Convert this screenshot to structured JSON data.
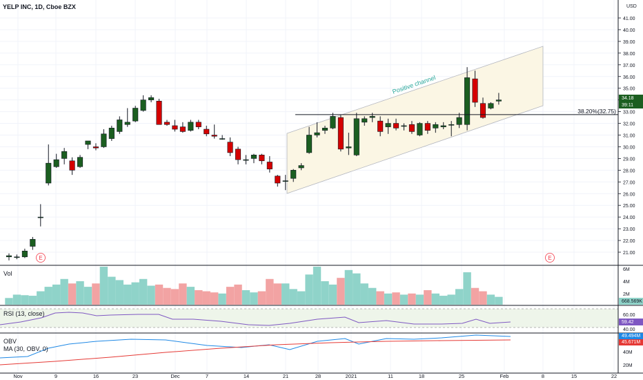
{
  "header": {
    "symbol_title": "YELP INC, 1D, Cboe BZX",
    "currency": "USD"
  },
  "panes": {
    "volume_label": "Vol",
    "rsi_label": "RSI (13, close)",
    "obv_label": "OBV",
    "obv_ma_label": "MA (30, OBV, 0)"
  },
  "annotations": {
    "channel_text": "Positive channel",
    "fib_level_text": "38.20%(32.75)",
    "earnings_marker": "E"
  },
  "badges": {
    "last_price": "34.18",
    "countdown": "39:11",
    "volume_last": "668.569K",
    "rsi_last": "59.42",
    "obv_last": "49.494M",
    "obv_ma_last": "45.671M"
  },
  "colors": {
    "up": "#26a69a",
    "down": "#ef5350",
    "up_body": "#1b5e20",
    "down_body": "#d50000",
    "vol_up": "#8fd3c9",
    "vol_down": "#f2a3a3",
    "channel_fill": "#fbf6e4",
    "rsi": "#7e57c2",
    "obv": "#1e88e5",
    "obv_ma": "#e53935",
    "earnings": "#f23645"
  },
  "chart_data": {
    "type": "candlestick",
    "title": "YELP INC, 1D, Cboe BZX",
    "y_axis": {
      "ticks": [
        "41.00",
        "40.00",
        "39.00",
        "38.00",
        "37.00",
        "36.00",
        "35.00",
        "34.00",
        "33.00",
        "32.00",
        "31.00",
        "30.00",
        "29.00",
        "28.00",
        "27.00",
        "26.00",
        "25.00",
        "24.00",
        "23.00",
        "22.00",
        "21.00"
      ],
      "range": [
        20.1,
        42.0
      ]
    },
    "x_axis": {
      "ticks": [
        "Nov",
        "9",
        "16",
        "23",
        "Dec",
        "7",
        "14",
        "21",
        "28",
        "2021",
        "11",
        "18",
        "25",
        "Feb",
        "8",
        "15",
        "22"
      ]
    },
    "candles": [
      {
        "o": 20.6,
        "h": 20.9,
        "l": 20.3,
        "c": 20.7
      },
      {
        "o": 20.6,
        "h": 20.8,
        "l": 20.4,
        "c": 20.6
      },
      {
        "o": 20.6,
        "h": 21.3,
        "l": 20.5,
        "c": 21.1
      },
      {
        "o": 21.5,
        "h": 22.3,
        "l": 21.2,
        "c": 22.1
      },
      {
        "o": 24.0,
        "h": 25.1,
        "l": 23.2,
        "c": 24.0
      },
      {
        "o": 26.9,
        "h": 30.2,
        "l": 26.7,
        "c": 28.6
      },
      {
        "o": 28.3,
        "h": 29.4,
        "l": 28.2,
        "c": 28.9
      },
      {
        "o": 29.0,
        "h": 29.9,
        "l": 28.5,
        "c": 29.6
      },
      {
        "o": 28.8,
        "h": 29.1,
        "l": 27.6,
        "c": 28.0
      },
      {
        "o": 28.3,
        "h": 29.3,
        "l": 28.2,
        "c": 29.1
      },
      {
        "o": 30.2,
        "h": 30.5,
        "l": 29.8,
        "c": 30.5
      },
      {
        "o": 30.0,
        "h": 30.3,
        "l": 29.7,
        "c": 29.9
      },
      {
        "o": 30.0,
        "h": 31.5,
        "l": 29.9,
        "c": 31.1
      },
      {
        "o": 30.7,
        "h": 31.8,
        "l": 30.5,
        "c": 31.6
      },
      {
        "o": 31.3,
        "h": 32.6,
        "l": 31.1,
        "c": 32.3
      },
      {
        "o": 31.9,
        "h": 33.3,
        "l": 31.7,
        "c": 32.1
      },
      {
        "o": 32.2,
        "h": 33.5,
        "l": 32.1,
        "c": 33.3
      },
      {
        "o": 33.1,
        "h": 34.4,
        "l": 33.0,
        "c": 34.0
      },
      {
        "o": 34.0,
        "h": 34.4,
        "l": 33.8,
        "c": 34.2
      },
      {
        "o": 33.9,
        "h": 34.1,
        "l": 31.9,
        "c": 31.9
      },
      {
        "o": 32.1,
        "h": 32.3,
        "l": 31.8,
        "c": 31.9
      },
      {
        "o": 31.8,
        "h": 32.3,
        "l": 31.3,
        "c": 31.5
      },
      {
        "o": 31.7,
        "h": 32.1,
        "l": 31.2,
        "c": 31.3
      },
      {
        "o": 31.4,
        "h": 32.3,
        "l": 31.3,
        "c": 32.1
      },
      {
        "o": 32.1,
        "h": 32.3,
        "l": 31.5,
        "c": 31.7
      },
      {
        "o": 31.5,
        "h": 31.8,
        "l": 30.9,
        "c": 31.1
      },
      {
        "o": 31.0,
        "h": 31.9,
        "l": 30.7,
        "c": 30.9
      },
      {
        "o": 30.7,
        "h": 31.0,
        "l": 30.6,
        "c": 30.7
      },
      {
        "o": 30.4,
        "h": 30.8,
        "l": 29.2,
        "c": 29.5
      },
      {
        "o": 29.8,
        "h": 30.0,
        "l": 28.5,
        "c": 28.9
      },
      {
        "o": 28.9,
        "h": 29.3,
        "l": 28.5,
        "c": 28.9
      },
      {
        "o": 29.0,
        "h": 29.4,
        "l": 28.6,
        "c": 29.3
      },
      {
        "o": 29.3,
        "h": 29.4,
        "l": 28.5,
        "c": 28.8
      },
      {
        "o": 28.7,
        "h": 29.2,
        "l": 27.8,
        "c": 28.1
      },
      {
        "o": 27.5,
        "h": 27.6,
        "l": 26.6,
        "c": 26.9
      },
      {
        "o": 27.1,
        "h": 27.6,
        "l": 26.3,
        "c": 27.1
      },
      {
        "o": 27.3,
        "h": 28.1,
        "l": 27.0,
        "c": 28.0
      },
      {
        "o": 28.2,
        "h": 28.6,
        "l": 28.0,
        "c": 28.4
      },
      {
        "o": 29.5,
        "h": 31.7,
        "l": 29.4,
        "c": 31.0
      },
      {
        "o": 31.0,
        "h": 32.1,
        "l": 30.8,
        "c": 31.2
      },
      {
        "o": 31.4,
        "h": 31.8,
        "l": 31.1,
        "c": 31.6
      },
      {
        "o": 31.6,
        "h": 32.9,
        "l": 31.5,
        "c": 32.6
      },
      {
        "o": 32.5,
        "h": 32.7,
        "l": 29.6,
        "c": 29.8
      },
      {
        "o": 29.9,
        "h": 31.2,
        "l": 29.3,
        "c": 30.0
      },
      {
        "o": 29.3,
        "h": 32.9,
        "l": 29.2,
        "c": 32.4
      },
      {
        "o": 32.1,
        "h": 32.6,
        "l": 31.8,
        "c": 32.4
      },
      {
        "o": 32.5,
        "h": 32.9,
        "l": 32.1,
        "c": 32.6
      },
      {
        "o": 32.2,
        "h": 32.6,
        "l": 30.9,
        "c": 31.3
      },
      {
        "o": 31.7,
        "h": 32.4,
        "l": 31.1,
        "c": 32.0
      },
      {
        "o": 32.0,
        "h": 32.4,
        "l": 31.4,
        "c": 31.6
      },
      {
        "o": 31.8,
        "h": 32.0,
        "l": 31.4,
        "c": 31.8
      },
      {
        "o": 31.9,
        "h": 32.2,
        "l": 31.1,
        "c": 31.3
      },
      {
        "o": 31.0,
        "h": 32.1,
        "l": 30.9,
        "c": 32.0
      },
      {
        "o": 32.0,
        "h": 32.2,
        "l": 31.1,
        "c": 31.4
      },
      {
        "o": 31.6,
        "h": 32.1,
        "l": 31.2,
        "c": 31.9
      },
      {
        "o": 31.7,
        "h": 32.1,
        "l": 31.5,
        "c": 31.8
      },
      {
        "o": 31.9,
        "h": 32.2,
        "l": 30.9,
        "c": 31.9
      },
      {
        "o": 31.9,
        "h": 32.9,
        "l": 31.6,
        "c": 32.5
      },
      {
        "o": 31.9,
        "h": 36.8,
        "l": 31.4,
        "c": 35.9
      },
      {
        "o": 35.8,
        "h": 36.5,
        "l": 33.4,
        "c": 33.8
      },
      {
        "o": 33.7,
        "h": 34.2,
        "l": 32.4,
        "c": 32.5
      },
      {
        "o": 33.3,
        "h": 33.8,
        "l": 33.2,
        "c": 33.7
      },
      {
        "o": 33.9,
        "h": 34.6,
        "l": 33.6,
        "c": 34.0
      }
    ],
    "volume": {
      "y_ticks": [
        "6M",
        "4M",
        "2M"
      ],
      "values": [
        0.6,
        0.9,
        0.85,
        0.8,
        1.2,
        1.6,
        1.8,
        2.3,
        1.9,
        2.1,
        1.6,
        1.9,
        3.4,
        2.5,
        2.2,
        1.8,
        2.0,
        2.3,
        1.7,
        1.8,
        1.5,
        1.4,
        1.9,
        1.6,
        1.3,
        1.2,
        1.1,
        1.0,
        1.6,
        1.8,
        1.3,
        1.1,
        1.2,
        2.3,
        1.9,
        1.9,
        1.4,
        1.2,
        2.7,
        3.4,
        2.1,
        1.8,
        2.4,
        3.1,
        2.8,
        1.9,
        1.5,
        1.2,
        1.0,
        1.1,
        0.9,
        1.0,
        0.9,
        1.3,
        1.0,
        0.8,
        0.9,
        1.4,
        2.9,
        1.5,
        1.2,
        0.9,
        0.7
      ]
    },
    "rsi": {
      "y_ticks": [
        "60.00",
        "40.00"
      ],
      "band": [
        30,
        70
      ]
    },
    "obv": {
      "y_ticks": [
        "40M",
        "20M"
      ]
    }
  }
}
